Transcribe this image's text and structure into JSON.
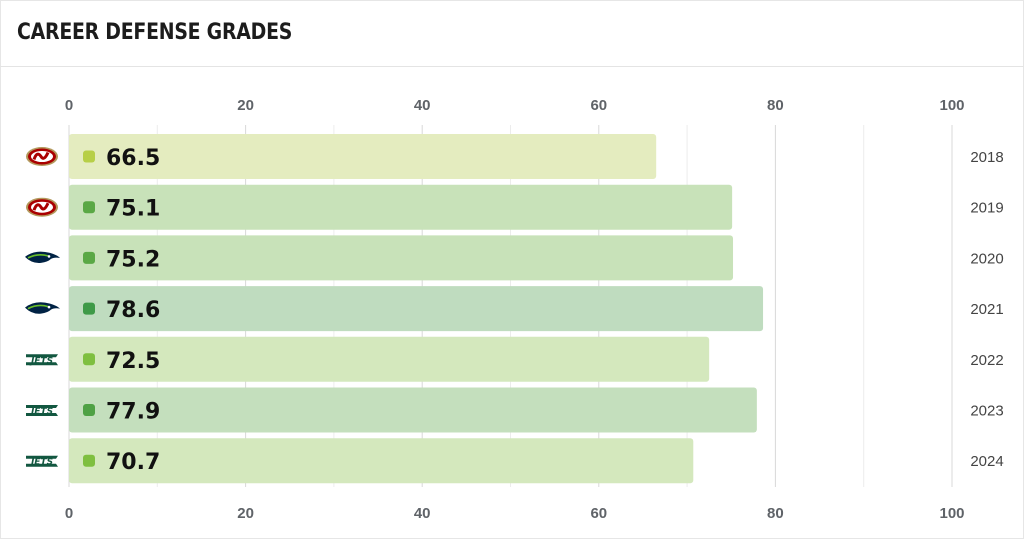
{
  "title": "CAREER DEFENSE GRADES",
  "chart_data": {
    "type": "bar",
    "orientation": "horizontal",
    "title": "CAREER DEFENSE GRADES",
    "xlim": [
      0,
      100
    ],
    "x_ticks": [
      0,
      20,
      40,
      60,
      80,
      100
    ],
    "categories": [
      "2018",
      "2019",
      "2020",
      "2021",
      "2022",
      "2023",
      "2024"
    ],
    "values": [
      66.5,
      75.1,
      75.2,
      78.6,
      72.5,
      77.9,
      70.7
    ],
    "value_labels": [
      "66.5",
      "75.1",
      "75.2",
      "78.6",
      "72.5",
      "77.9",
      "70.7"
    ],
    "teams": [
      "49ers-logo-icon",
      "49ers-logo-icon",
      "seahawks-logo-icon",
      "seahawks-logo-icon",
      "jets-logo-icon",
      "jets-logo-icon",
      "jets-logo-icon"
    ],
    "bar_colors": [
      "#e4ecbf",
      "#c8e2b9",
      "#c8e2b9",
      "#bfdcbf",
      "#d4e8bd",
      "#c4dfbd",
      "#d4e8bd"
    ],
    "dot_colors": [
      "#b7cf47",
      "#5aa845",
      "#5aa845",
      "#3f9a48",
      "#7fbf40",
      "#4fa145",
      "#7fbf40"
    ],
    "team_text": {
      "jets": "JETS"
    },
    "grid": true
  }
}
